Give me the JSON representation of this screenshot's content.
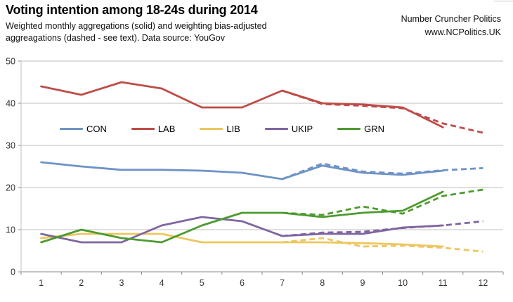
{
  "header": {
    "title": "Voting intention among 18-24s during 2014",
    "subtitle_line1": "Weighted monthly aggregations (solid) and weighting bias-adjusted",
    "subtitle_line2": "aggreagations (dashed - see text). Data source: YouGov",
    "brand_line1": "Number Cruncher Politics",
    "brand_line2": "www.NCPolitics.UK"
  },
  "chart_data": {
    "type": "line",
    "title": "Voting intention among 18-24s during 2014",
    "xlabel": "",
    "ylabel": "",
    "x_categories": [
      "1",
      "2",
      "3",
      "4",
      "5",
      "6",
      "7",
      "8",
      "9",
      "10",
      "11",
      "12"
    ],
    "ylim": [
      0,
      50
    ],
    "yticks": [
      0,
      10,
      20,
      30,
      40,
      50
    ],
    "grid": true,
    "legend_position": "inside-upper-left",
    "legend": [
      "CON",
      "LAB",
      "LIB",
      "UKIP",
      "GRN"
    ],
    "colors": {
      "CON": "#6E93C6",
      "LAB": "#BE4C48",
      "LIB": "#EDC65F",
      "UKIP": "#7F65A0",
      "GRN": "#4C9B2F",
      "grid": "#BFBFBF",
      "axis": "#898989",
      "tick_text": "#333333"
    },
    "series": [
      {
        "name": "CON",
        "party": "CON",
        "style": "solid",
        "x": [
          1,
          2,
          3,
          4,
          5,
          6,
          7,
          8,
          9,
          10,
          11
        ],
        "values": [
          26,
          25,
          24.2,
          24.2,
          24,
          23.5,
          22,
          25.2,
          23.5,
          23,
          24
        ]
      },
      {
        "name": "CON (bias-adjusted)",
        "party": "CON",
        "style": "dashed",
        "x": [
          7,
          8,
          9,
          10,
          11,
          12
        ],
        "values": [
          22,
          25.7,
          23.8,
          23.3,
          24.1,
          24.6
        ]
      },
      {
        "name": "LAB",
        "party": "LAB",
        "style": "solid",
        "x": [
          1,
          2,
          3,
          4,
          5,
          6,
          7,
          8,
          9,
          10,
          11
        ],
        "values": [
          44,
          42,
          45,
          43.5,
          39,
          39,
          43,
          40,
          39.7,
          39,
          34.3
        ]
      },
      {
        "name": "LAB (bias-adjusted)",
        "party": "LAB",
        "style": "dashed",
        "x": [
          7,
          8,
          9,
          10,
          11,
          12
        ],
        "values": [
          43,
          39.8,
          39.4,
          38.8,
          35.2,
          33
        ]
      },
      {
        "name": "LIB",
        "party": "LIB",
        "style": "solid",
        "x": [
          1,
          2,
          3,
          4,
          5,
          6,
          7,
          8,
          9,
          10,
          11
        ],
        "values": [
          8,
          9,
          9,
          9,
          7,
          7,
          7,
          7,
          6.8,
          6.5,
          6
        ]
      },
      {
        "name": "LIB (bias-adjusted)",
        "party": "LIB",
        "style": "dashed",
        "x": [
          7,
          8,
          9,
          10,
          11,
          12
        ],
        "values": [
          7,
          8,
          6,
          6.2,
          5.7,
          4.8
        ]
      },
      {
        "name": "UKIP",
        "party": "UKIP",
        "style": "solid",
        "x": [
          1,
          2,
          3,
          4,
          5,
          6,
          7,
          8,
          9,
          10,
          11
        ],
        "values": [
          9,
          7,
          7,
          11,
          13,
          12,
          8.5,
          9,
          9,
          10.5,
          11
        ]
      },
      {
        "name": "UKIP (bias-adjusted)",
        "party": "UKIP",
        "style": "dashed",
        "x": [
          7,
          8,
          9,
          10,
          11,
          12
        ],
        "values": [
          8.5,
          9.3,
          9.5,
          10.4,
          11,
          12
        ]
      },
      {
        "name": "GRN",
        "party": "GRN",
        "style": "solid",
        "x": [
          1,
          2,
          3,
          4,
          5,
          6,
          7,
          8,
          9,
          10,
          11
        ],
        "values": [
          7,
          10,
          8,
          7,
          11,
          14,
          14,
          13,
          14,
          14.5,
          19
        ]
      },
      {
        "name": "GRN (bias-adjusted)",
        "party": "GRN",
        "style": "dashed",
        "x": [
          7,
          8,
          9,
          10,
          11,
          12
        ],
        "values": [
          14,
          13.5,
          15.5,
          13.8,
          18,
          19.5
        ]
      }
    ]
  }
}
